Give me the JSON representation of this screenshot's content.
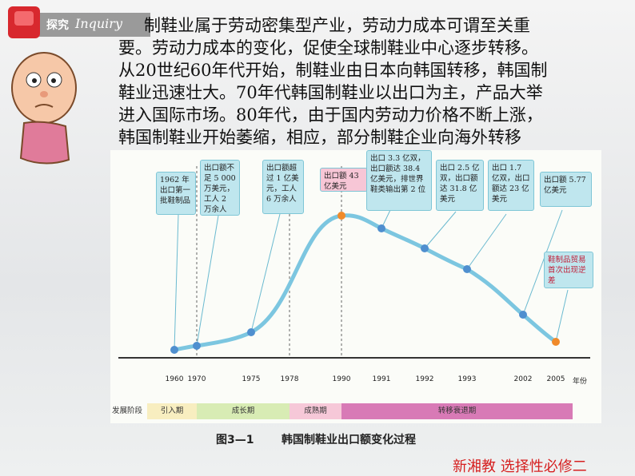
{
  "header": {
    "label": "探究",
    "label_en": "Inquiry"
  },
  "paragraph": {
    "lines": [
      "制鞋业属于劳动密集型产业，劳动力成本可谓至关重",
      "要。劳动力成本的变化，促使全球制鞋业中心逐步转移。",
      "从20世纪60年代开始，制鞋业由日本向韩国转移，韩国制",
      "鞋业迅速壮大。70年代韩国制鞋业以出口为主，产品大举",
      "进入国际市场。80年代，由于国内劳动力价格不断上涨，",
      "韩国制鞋业开始萎缩，相应，部分制鞋企业向海外转移"
    ]
  },
  "figure": {
    "callouts": [
      "1962 年出口第一批鞋制品",
      "出口额不足 5 000 万美元，工人 2 万余人",
      "出口额超过 1 亿美元，工人 6 万余人",
      "出口额 43 亿美元",
      "出口 3.3 亿双，出口额达 38.4 亿美元，排世界鞋类输出第 2 位",
      "出口 2.5 亿双，出口额达 31.8 亿美元",
      "出口 1.7 亿双，出口额达 23 亿美元",
      "出口额 5.77 亿美元",
      "鞋制品贸易首次出现逆差"
    ],
    "years": [
      "1960",
      "1970",
      "1975",
      "1978",
      "1990",
      "1991",
      "1992",
      "1993",
      "2002",
      "2005"
    ],
    "axis_label": "年份",
    "stage_label": "发展阶段",
    "stages": [
      "引入期",
      "成长期",
      "成熟期",
      "转移衰退期"
    ],
    "caption_number": "图3—1",
    "caption_text": "韩国制鞋业出口额变化过程"
  },
  "footer": "新湘教  选择性必修二"
}
